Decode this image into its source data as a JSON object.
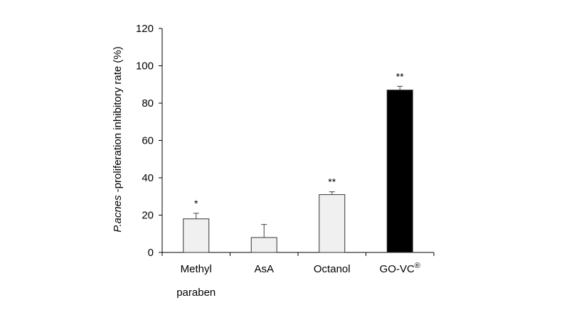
{
  "chart_data": {
    "type": "bar",
    "title": "",
    "xlabel": "",
    "ylabel": {
      "italic_part": "P.acnes",
      "rest": " -proliferation inhibitory rate (%)"
    },
    "ylim": [
      0,
      120
    ],
    "yticks": [
      0,
      20,
      40,
      60,
      80,
      100,
      120
    ],
    "categories": [
      {
        "lines": [
          "Methyl",
          "paraben"
        ]
      },
      {
        "lines": [
          "AsA"
        ]
      },
      {
        "lines": [
          "Octanol"
        ]
      },
      {
        "lines": [
          "GO-VC",
          "®"
        ],
        "superscript": true
      }
    ],
    "values": [
      18,
      8,
      31,
      87
    ],
    "error_upper": [
      3,
      7,
      1.5,
      2
    ],
    "significance": [
      "*",
      "",
      "**",
      "**"
    ],
    "bar_colors": [
      "#f0f0f0",
      "#f0f0f0",
      "#f0f0f0",
      "#000000"
    ],
    "grid": false,
    "legend": "none"
  }
}
